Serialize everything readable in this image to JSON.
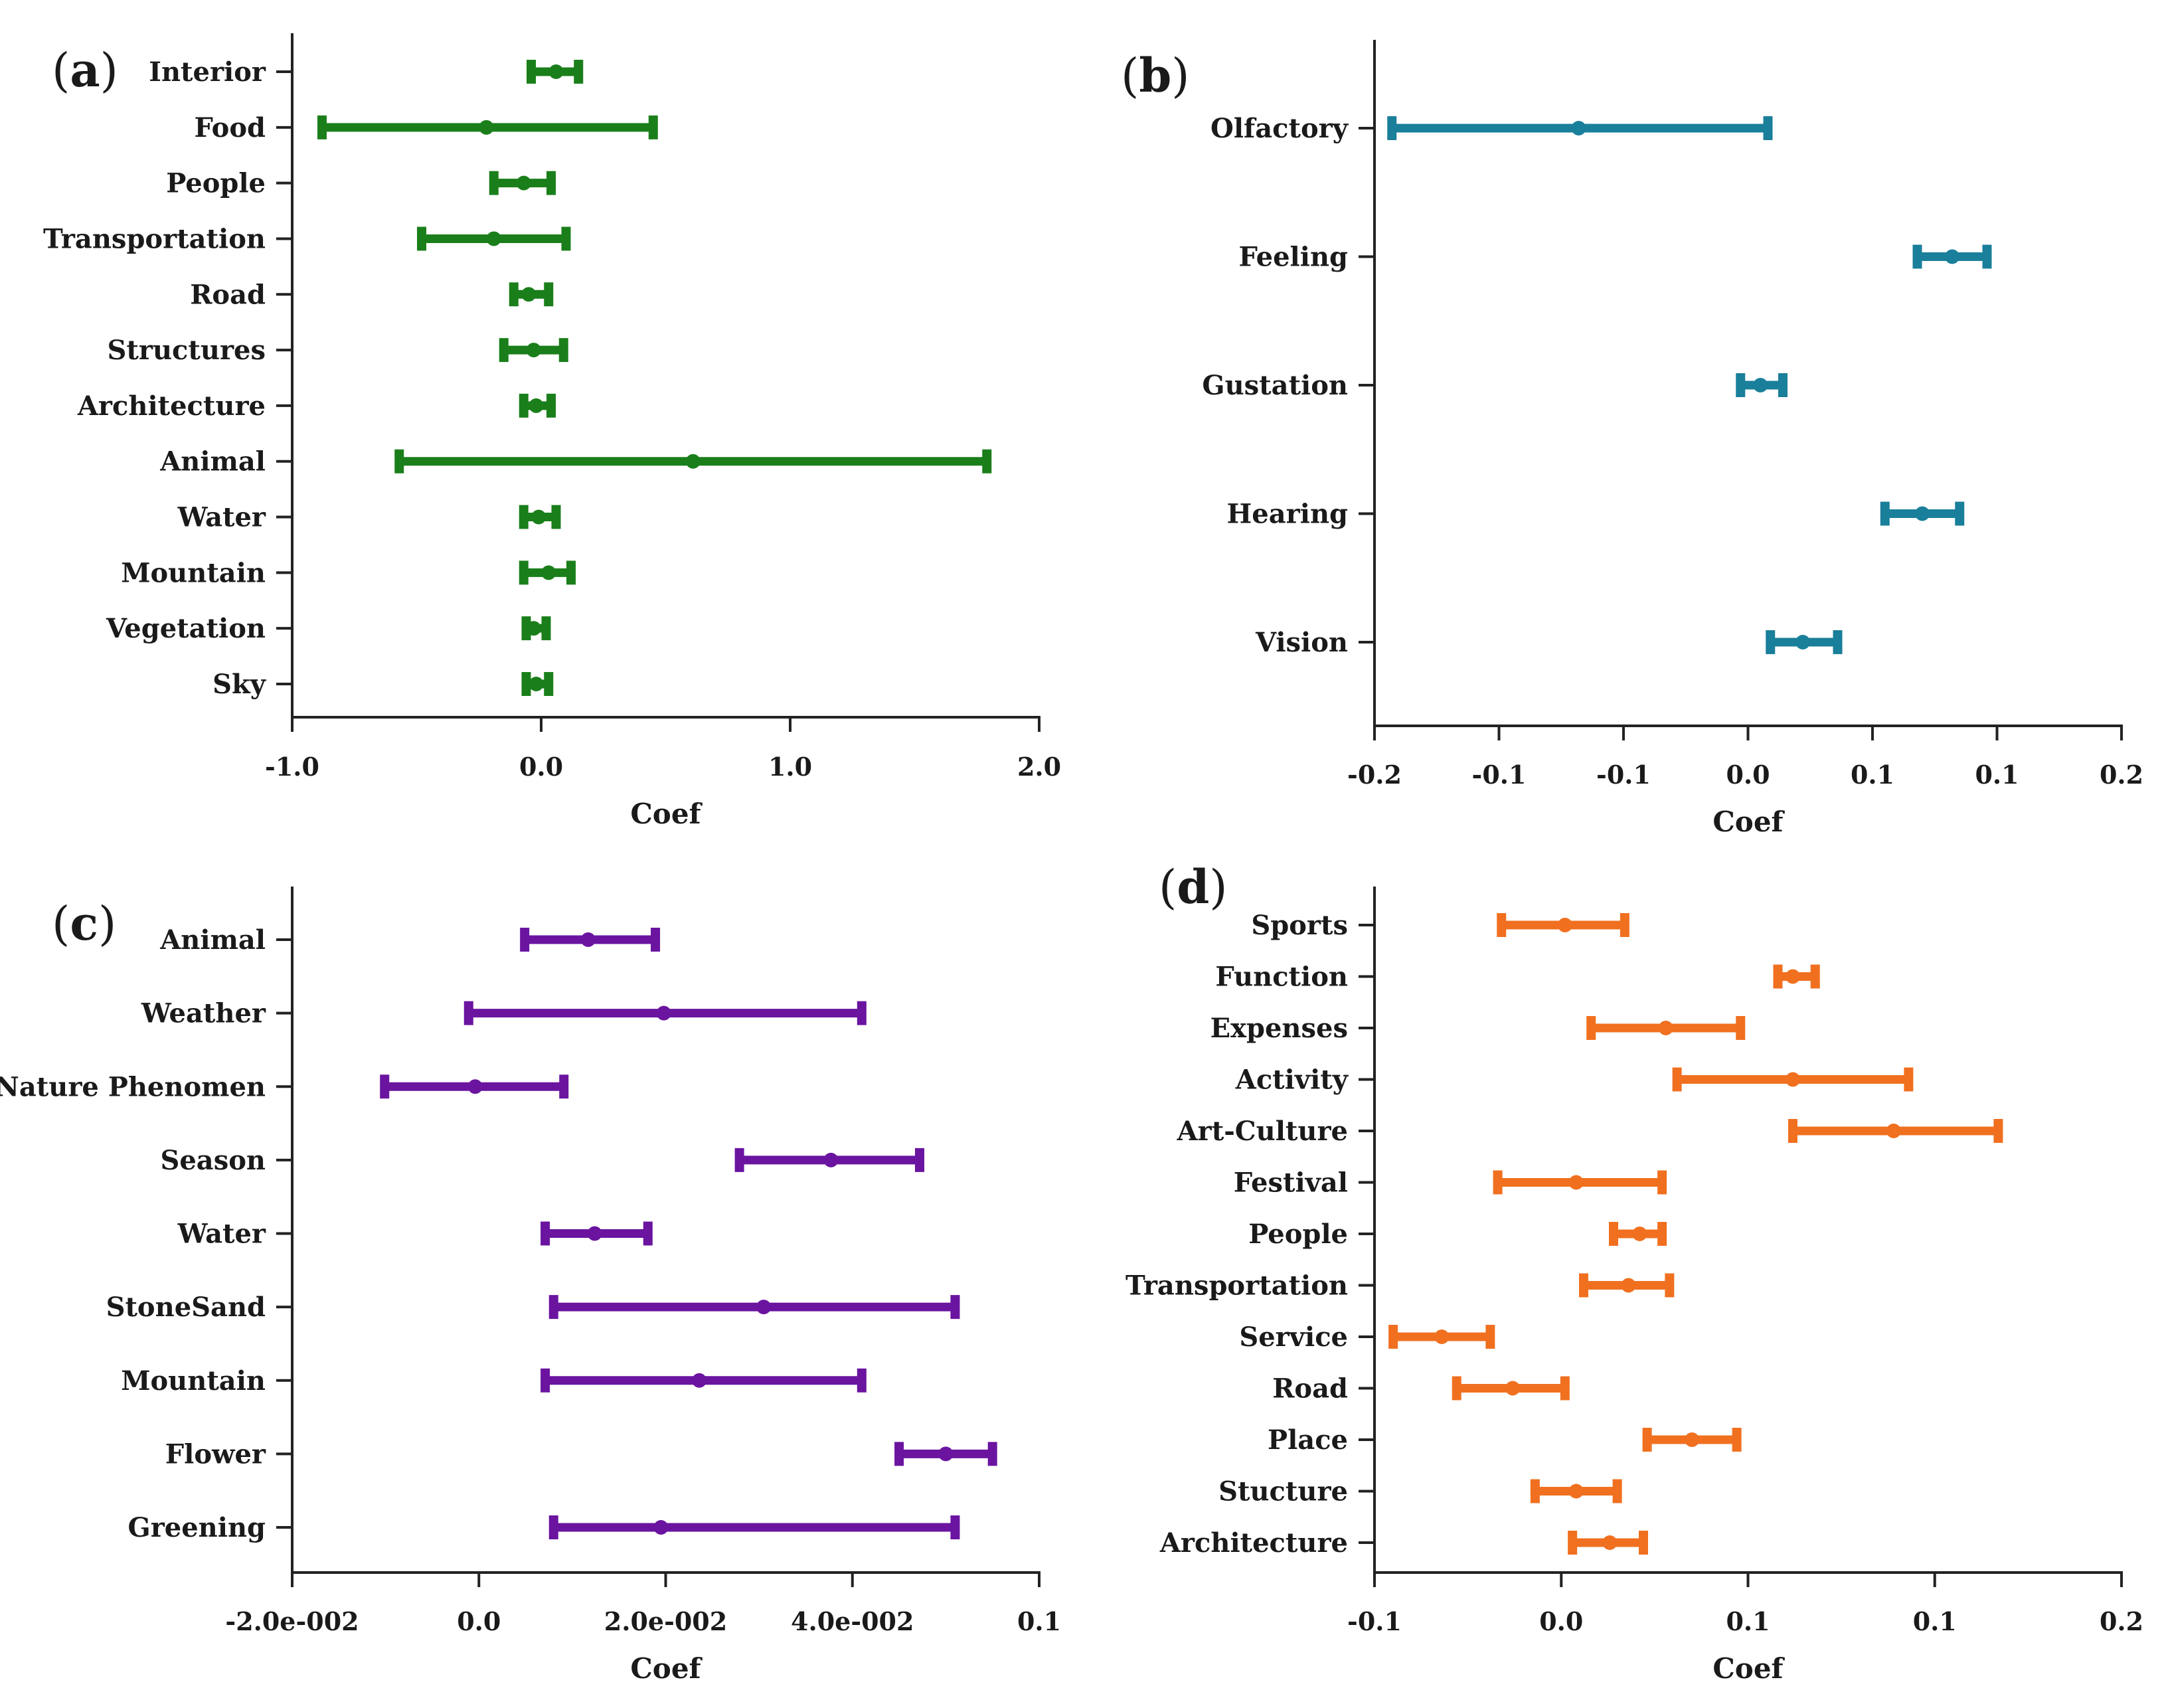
{
  "chart_data": [
    {
      "id": "a",
      "type": "errorbar",
      "panel_label_open": "(",
      "panel_label": "a",
      "panel_label_close": ")",
      "xlabel": "Coef",
      "xlim": [
        -1.0,
        2.0
      ],
      "xticks": [
        -1.0,
        0.0,
        1.0,
        2.0
      ],
      "xtick_labels": [
        "-1.0",
        "0.0",
        "1.0",
        "2.0"
      ],
      "color": "#1a7f1a",
      "categories": [
        "Interior",
        "Food",
        "People",
        "Transportation",
        "Road",
        "Structures",
        "Architecture",
        "Animal",
        "Water",
        "Mountain",
        "Vegetation",
        "Sky"
      ],
      "points": [
        {
          "mid": 0.06,
          "low": -0.04,
          "high": 0.15
        },
        {
          "mid": -0.22,
          "low": -0.88,
          "high": 0.45
        },
        {
          "mid": -0.07,
          "low": -0.19,
          "high": 0.04
        },
        {
          "mid": -0.19,
          "low": -0.48,
          "high": 0.1
        },
        {
          "mid": -0.05,
          "low": -0.11,
          "high": 0.03
        },
        {
          "mid": -0.03,
          "low": -0.15,
          "high": 0.09
        },
        {
          "mid": -0.02,
          "low": -0.07,
          "high": 0.04
        },
        {
          "mid": 0.61,
          "low": -0.57,
          "high": 1.79
        },
        {
          "mid": -0.01,
          "low": -0.07,
          "high": 0.06
        },
        {
          "mid": 0.03,
          "low": -0.07,
          "high": 0.12
        },
        {
          "mid": -0.03,
          "low": -0.06,
          "high": 0.02
        },
        {
          "mid": -0.02,
          "low": -0.06,
          "high": 0.03
        }
      ]
    },
    {
      "id": "b",
      "type": "errorbar",
      "panel_label_open": "(",
      "panel_label": "b",
      "panel_label_close": ")",
      "xlabel": "Coef",
      "xlim": [
        -0.15,
        0.15
      ],
      "xticks": [
        -0.15,
        -0.1,
        -0.05,
        0.0,
        0.05,
        0.1,
        0.15
      ],
      "xtick_labels": [
        "-0.2",
        "-0.1",
        "-0.1",
        "0.0",
        "0.1",
        "0.1",
        "0.2"
      ],
      "color": "#1a7f9a",
      "categories": [
        "Olfactory",
        "Feeling",
        "Gustation",
        "Hearing",
        "Vision"
      ],
      "points": [
        {
          "mid": -0.068,
          "low": -0.143,
          "high": 0.008
        },
        {
          "mid": 0.082,
          "low": 0.068,
          "high": 0.096
        },
        {
          "mid": 0.005,
          "low": -0.003,
          "high": 0.014
        },
        {
          "mid": 0.07,
          "low": 0.055,
          "high": 0.085
        },
        {
          "mid": 0.022,
          "low": 0.009,
          "high": 0.036
        }
      ]
    },
    {
      "id": "c",
      "type": "errorbar",
      "panel_label_open": "(",
      "panel_label": "c",
      "panel_label_close": ")",
      "xlabel": "Coef",
      "xlim": [
        -0.02,
        0.06
      ],
      "xticks": [
        -0.02,
        0.0,
        0.02,
        0.04,
        0.06
      ],
      "xtick_labels": [
        "-2.0e-002",
        "0.0",
        "2.0e-002",
        "4.0e-002",
        "0.1"
      ],
      "color": "#6a14a0",
      "categories": [
        "Animal",
        "Weather",
        "Nature Phenomen",
        "Season",
        "Water",
        "StoneSand",
        "Mountain",
        "Flower",
        "Greening"
      ],
      "points": [
        {
          "mid": 0.0117,
          "low": 0.0049,
          "high": 0.0189
        },
        {
          "mid": 0.0198,
          "low": -0.0011,
          "high": 0.041
        },
        {
          "mid": -0.0004,
          "low": -0.0101,
          "high": 0.0091
        },
        {
          "mid": 0.0377,
          "low": 0.0279,
          "high": 0.0472
        },
        {
          "mid": 0.0124,
          "low": 0.0071,
          "high": 0.0181
        },
        {
          "mid": 0.0305,
          "low": 0.008,
          "high": 0.051
        },
        {
          "mid": 0.0236,
          "low": 0.0071,
          "high": 0.041
        },
        {
          "mid": 0.05,
          "low": 0.045,
          "high": 0.055
        },
        {
          "mid": 0.0195,
          "low": 0.008,
          "high": 0.051
        }
      ]
    },
    {
      "id": "d",
      "type": "errorbar",
      "panel_label_open": "(",
      "panel_label": "d",
      "panel_label_close": ")",
      "xlabel": "Coef",
      "xlim": [
        -0.05,
        0.15
      ],
      "xticks": [
        -0.05,
        0.0,
        0.05,
        0.1,
        0.15
      ],
      "xtick_labels": [
        "-0.1",
        "0.0",
        "0.1",
        "0.1",
        "0.2"
      ],
      "color": "#f07020",
      "categories": [
        "Sports",
        "Function",
        "Expenses",
        "Activity",
        "Art-Culture",
        "Festival",
        "People",
        "Transportation",
        "Service",
        "Road",
        "Place",
        "Stucture",
        "Architecture"
      ],
      "points": [
        {
          "mid": 0.001,
          "low": -0.016,
          "high": 0.017
        },
        {
          "mid": 0.062,
          "low": 0.058,
          "high": 0.068
        },
        {
          "mid": 0.028,
          "low": 0.008,
          "high": 0.048
        },
        {
          "mid": 0.062,
          "low": 0.031,
          "high": 0.093
        },
        {
          "mid": 0.089,
          "low": 0.062,
          "high": 0.117
        },
        {
          "mid": 0.004,
          "low": -0.017,
          "high": 0.027
        },
        {
          "mid": 0.021,
          "low": 0.014,
          "high": 0.027
        },
        {
          "mid": 0.018,
          "low": 0.006,
          "high": 0.029
        },
        {
          "mid": -0.032,
          "low": -0.045,
          "high": -0.019
        },
        {
          "mid": -0.013,
          "low": -0.028,
          "high": 0.001
        },
        {
          "mid": 0.035,
          "low": 0.023,
          "high": 0.047
        },
        {
          "mid": 0.004,
          "low": -0.007,
          "high": 0.015
        },
        {
          "mid": 0.013,
          "low": 0.003,
          "high": 0.022
        }
      ]
    }
  ]
}
